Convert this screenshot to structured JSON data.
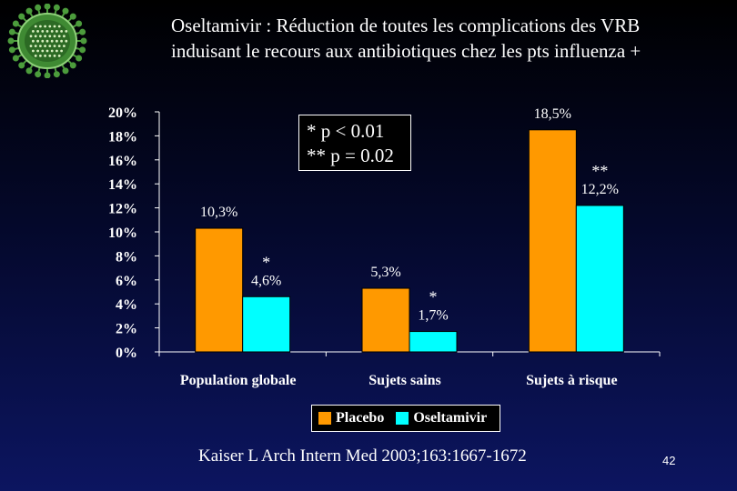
{
  "slide": {
    "title_line1": "Oseltamivir : Réduction de toutes les complications des VRB",
    "title_line2": "induisant le recours aux antibiotiques chez les pts influenza +",
    "citation": "Kaiser L Arch Intern Med 2003;163:1667-1672",
    "page_number": "42"
  },
  "stats_box": {
    "line1": "*   p < 0.01",
    "line2": "** p = 0.02"
  },
  "colors": {
    "placebo": "#ff9900",
    "oseltamivir": "#00ffff",
    "background_top": "#000000",
    "background_bottom": "#0c1560",
    "logo": "#4c9c3c"
  },
  "chart_data": {
    "type": "bar",
    "categories": [
      "Population globale",
      "Sujets sains",
      "Sujets à risque"
    ],
    "series": [
      {
        "name": "Placebo",
        "values": [
          10.3,
          5.3,
          18.5
        ],
        "labels": [
          "10,3%",
          "5,3%",
          "18,5%"
        ]
      },
      {
        "name": "Oseltamivir",
        "values": [
          4.6,
          1.7,
          12.2
        ],
        "labels": [
          "4,6%",
          "1,7%",
          "12,2%"
        ]
      }
    ],
    "significance": [
      "*",
      "*",
      "**"
    ],
    "ylim": [
      0,
      20
    ],
    "yticks": [
      "0%",
      "2%",
      "4%",
      "6%",
      "8%",
      "10%",
      "12%",
      "14%",
      "16%",
      "18%",
      "20%"
    ],
    "legend": [
      "Placebo",
      "Oseltamivir"
    ],
    "legend_position": "bottom-center",
    "grid": false
  }
}
